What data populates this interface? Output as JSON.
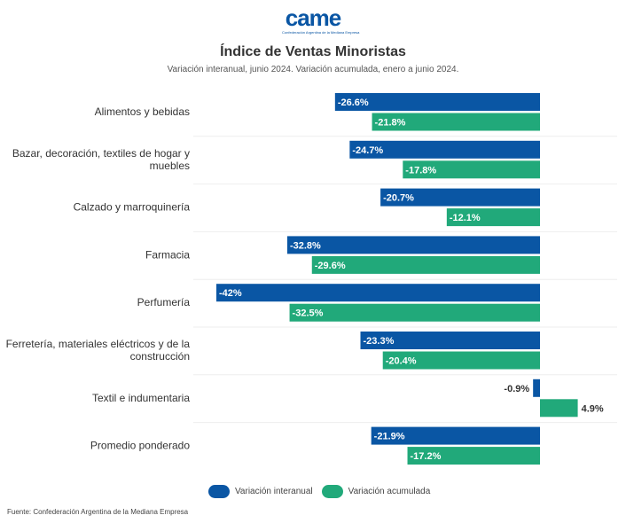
{
  "logo": {
    "text": "came",
    "subtext": "Confederación Argentina de la Mediana Empresa"
  },
  "chart_data": {
    "type": "bar",
    "orientation": "horizontal",
    "title": "Índice de Ventas Minoristas",
    "subtitle": "Variación interanual, junio 2024. Variación acumulada, enero a junio 2024.",
    "categories": [
      [
        "Alimentos y bebidas"
      ],
      [
        "Bazar, decoración, textiles de hogar y",
        "muebles"
      ],
      [
        "Calzado y marroquinería"
      ],
      [
        "Farmacia"
      ],
      [
        "Perfumería"
      ],
      [
        "Ferretería, materiales eléctricos y de la",
        "construcción"
      ],
      [
        "Textil e indumentaria"
      ],
      [
        "Promedio ponderado"
      ]
    ],
    "series": [
      {
        "name": "Variación interanual",
        "color": "#0a56a4",
        "values": [
          -26.6,
          -24.7,
          -20.7,
          -32.8,
          -42,
          -23.3,
          -0.9,
          -21.9
        ],
        "labels": [
          "-26.6%",
          "-24.7%",
          "-20.7%",
          "-32.8%",
          "-42%",
          "-23.3%",
          "-0.9%",
          "-21.9%"
        ]
      },
      {
        "name": "Variación acumulada",
        "color": "#21a97a",
        "values": [
          -21.8,
          -17.8,
          -12.1,
          -29.6,
          -32.5,
          -20.4,
          4.9,
          -17.2
        ],
        "labels": [
          "-21.8%",
          "-17.8%",
          "-12.1%",
          "-29.6%",
          "-32.5%",
          "-20.4%",
          "4.9%",
          "-17.2%"
        ]
      }
    ],
    "xlim": [
      -42,
      5
    ],
    "legend": "bottom",
    "grid": false
  },
  "legend": {
    "items": [
      "Variación interanual",
      "Variación acumulada"
    ]
  },
  "source": "Fuente: Confederación Argentina de la Mediana Empresa"
}
